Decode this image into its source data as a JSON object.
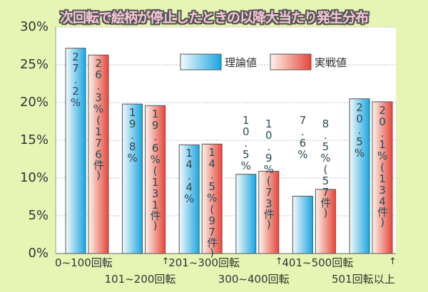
{
  "chart_data": {
    "type": "bar",
    "title": "次回転で絵柄が停止したときの以降大当たり発生分布",
    "categories": [
      "0~100回転",
      "101~200回転",
      "201~300回転",
      "300~400回転",
      "401~500回転",
      "501回転以上"
    ],
    "series": [
      {
        "name": "理論値",
        "values": [
          27.2,
          19.8,
          14.4,
          10.5,
          7.6,
          20.5
        ],
        "labels": [
          "27.2%",
          "19.8%",
          "14.4%",
          "10.5%",
          "7.6%",
          "20.5%"
        ],
        "color": "#1aa6e0"
      },
      {
        "name": "実戦値",
        "values": [
          26.3,
          19.6,
          14.5,
          10.9,
          8.5,
          20.1
        ],
        "labels": [
          "26.3%(176件)",
          "19.6%(131件)",
          "14.5%(97件)",
          "10.9%(73件)",
          "8.5%(57件)",
          "20.1%(134件)"
        ],
        "color": "#e8463a"
      }
    ],
    "yticks": [
      "0%",
      "5%",
      "10%",
      "15%",
      "20%",
      "25%",
      "30%"
    ],
    "ylim": [
      0,
      30
    ],
    "grid": true,
    "legend": "top-right"
  }
}
